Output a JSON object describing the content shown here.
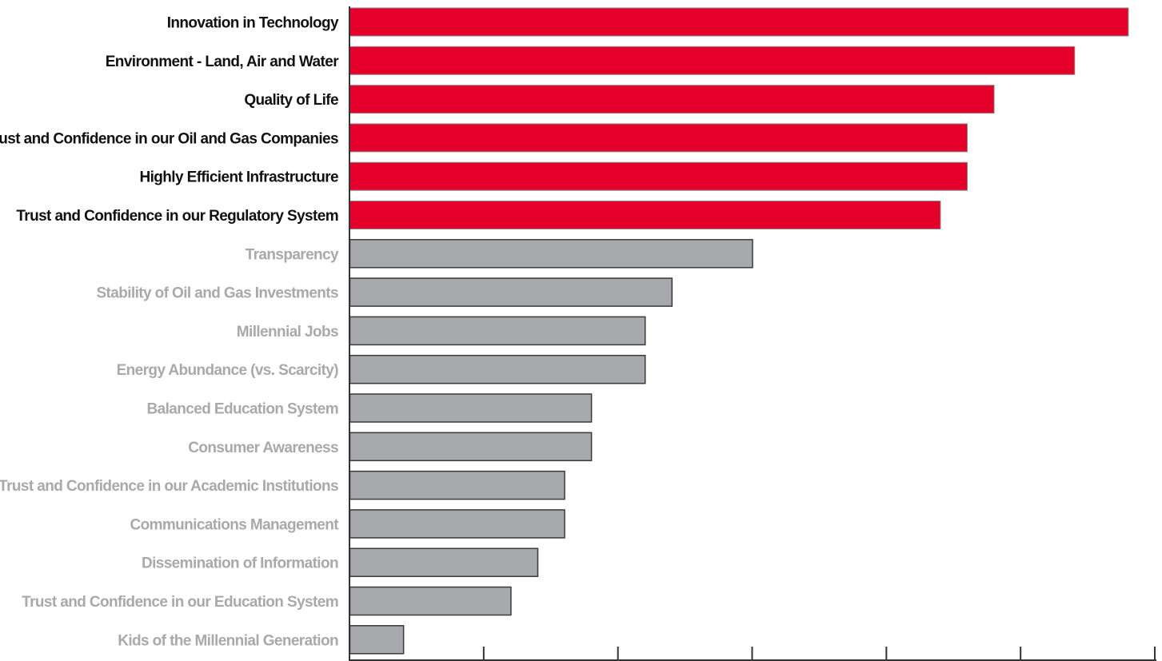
{
  "chart_data": {
    "type": "bar",
    "orientation": "horizontal",
    "title": "",
    "xlabel": "",
    "ylabel": "",
    "grid": false,
    "xlim": [
      0,
      30
    ],
    "tick_values": [
      0,
      5,
      10,
      15,
      20,
      25,
      30
    ],
    "categories": [
      "Innovation in Technology",
      "Environment - Land, Air and Water",
      "Quality of Life",
      "Trust and Confidence in our Oil and Gas Companies",
      "Highly Efficient Infrastructure",
      "Trust and Confidence in our Regulatory System",
      "Transparency",
      "Stability of Oil and Gas Investments",
      "Millennial Jobs",
      "Energy Abundance (vs. Scarcity)",
      "Balanced Education System",
      "Consumer Awareness",
      "Trust and Confidence in our Academic Institutions",
      "Communications Management",
      "Dissemination of Information",
      "Trust and Confidence in our Education System",
      "Kids of the Millennial Generation"
    ],
    "values": [
      29,
      27,
      24,
      23,
      23,
      22,
      15,
      12,
      11,
      11,
      9,
      9,
      8,
      8,
      7,
      6,
      2
    ],
    "highlighted_count": 6,
    "colors": {
      "highlight_bar": "#e4002b",
      "normal_bar": "#a7a9ac",
      "normal_bar_border": "#3a3a3a",
      "highlight_label": "#111111",
      "normal_label": "#a7a9ac",
      "axis": "#333333"
    }
  }
}
